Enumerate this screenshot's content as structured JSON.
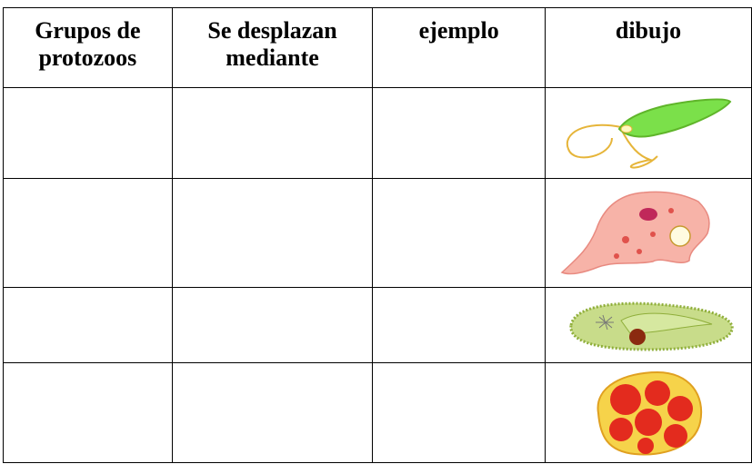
{
  "table": {
    "header": [
      [
        "Grupos de",
        "protozoos"
      ],
      [
        "Se desplazan",
        "mediante"
      ],
      [
        "ejemplo"
      ],
      [
        "dibujo"
      ]
    ]
  }
}
